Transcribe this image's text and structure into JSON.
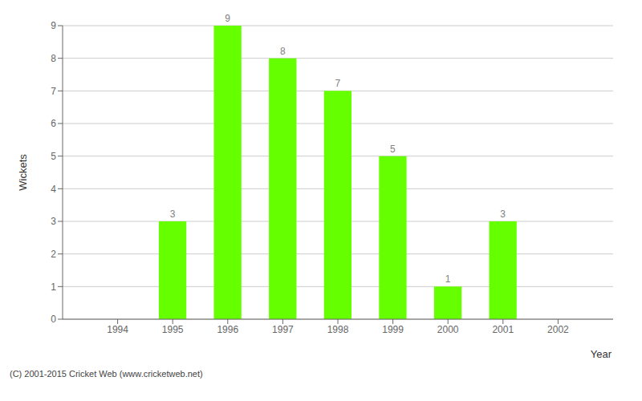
{
  "chart_data": {
    "type": "bar",
    "x": [
      1994,
      1995,
      1996,
      1997,
      1998,
      1999,
      2000,
      2001,
      2002
    ],
    "values": [
      0,
      3,
      9,
      8,
      7,
      5,
      1,
      3,
      0
    ],
    "color": "#66ff00",
    "xlabel": "Year",
    "ylabel": "Wickets",
    "xlim": [
      1993.0,
      2003.0
    ],
    "xticks": [
      1994,
      1995,
      1996,
      1997,
      1998,
      1999,
      2000,
      2001,
      2002
    ],
    "ylim": [
      0.0,
      9.0
    ],
    "yticks": [
      0,
      1,
      2,
      3,
      4,
      5,
      6,
      7,
      8,
      9
    ],
    "grid": true,
    "data_labels": true,
    "annotations": [
      "(C) 2001-2015 Cricket Web (www.cricketweb.net)"
    ]
  }
}
